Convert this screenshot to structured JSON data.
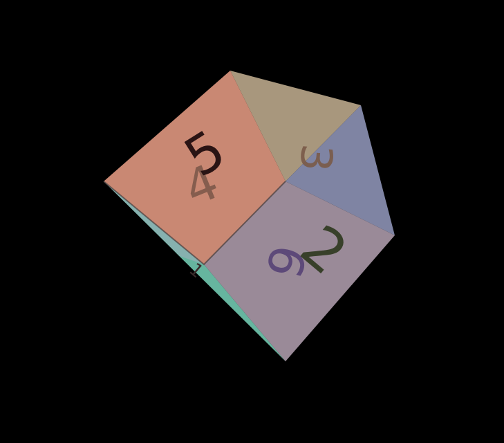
{
  "scene": {
    "background_color": "#000000"
  },
  "faces": [
    {
      "name": "left-front",
      "label": "5",
      "color": "#c98873",
      "text_color": "#2a1414"
    },
    {
      "name": "left-back",
      "label": "4",
      "color": "#c98873",
      "text_color": "#7a5648"
    },
    {
      "name": "top-right",
      "label": "3",
      "color": "#a8977d",
      "text_color": "#7a5a48"
    },
    {
      "name": "right-side",
      "label": "",
      "color": "#7f84a3",
      "text_color": "#5c5c80"
    },
    {
      "name": "bottom-front",
      "label": "2",
      "color": "#9a8a98",
      "text_color": "#38402a"
    },
    {
      "name": "bottom-back",
      "label": "6",
      "color": "#9a8a98",
      "text_color": "#5a4678"
    },
    {
      "name": "bottom-left",
      "label": "1",
      "color": "#6cbfa8",
      "text_color": "#3a2a2a"
    }
  ]
}
